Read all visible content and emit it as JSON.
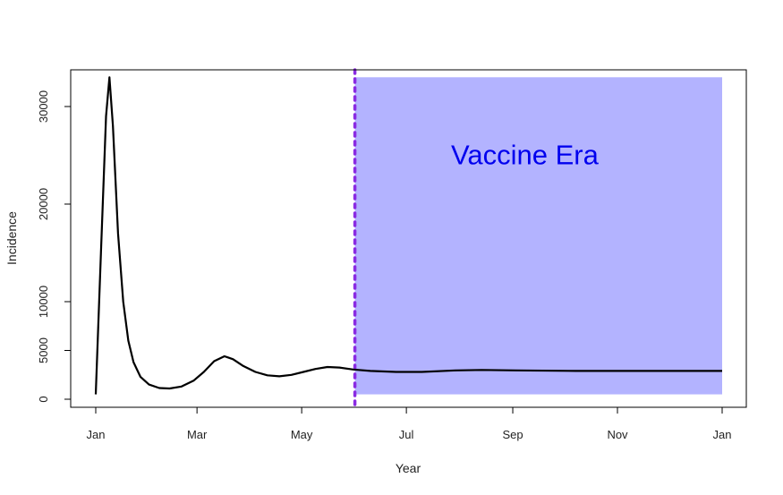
{
  "chart_data": {
    "type": "line",
    "xlabel": "Year",
    "ylabel": "Incidence",
    "x_ticks": [
      {
        "label": "Jan",
        "day": 0
      },
      {
        "label": "Mar",
        "day": 59
      },
      {
        "label": "May",
        "day": 120
      },
      {
        "label": "Jul",
        "day": 181
      },
      {
        "label": "Sep",
        "day": 243
      },
      {
        "label": "Nov",
        "day": 304
      },
      {
        "label": "Jan",
        "day": 365
      }
    ],
    "y_ticks": [
      0,
      5000,
      10000,
      20000,
      30000
    ],
    "xlim": [
      "Jan",
      "Jan"
    ],
    "ylim": [
      0,
      33000
    ],
    "series": [
      {
        "color": "#000000",
        "points": [
          {
            "x": 0,
            "y": 500
          },
          {
            "x": 3,
            "y": 15000
          },
          {
            "x": 6,
            "y": 29000
          },
          {
            "x": 8,
            "y": 33000
          },
          {
            "x": 10,
            "y": 28000
          },
          {
            "x": 13,
            "y": 17000
          },
          {
            "x": 16,
            "y": 10000
          },
          {
            "x": 19,
            "y": 6000
          },
          {
            "x": 22,
            "y": 3800
          },
          {
            "x": 26,
            "y": 2300
          },
          {
            "x": 31,
            "y": 1500
          },
          {
            "x": 37,
            "y": 1150
          },
          {
            "x": 43,
            "y": 1100
          },
          {
            "x": 50,
            "y": 1300
          },
          {
            "x": 57,
            "y": 1900
          },
          {
            "x": 63,
            "y": 2800
          },
          {
            "x": 69,
            "y": 3900
          },
          {
            "x": 75,
            "y": 4400
          },
          {
            "x": 80,
            "y": 4100
          },
          {
            "x": 86,
            "y": 3400
          },
          {
            "x": 93,
            "y": 2800
          },
          {
            "x": 100,
            "y": 2450
          },
          {
            "x": 107,
            "y": 2350
          },
          {
            "x": 114,
            "y": 2500
          },
          {
            "x": 121,
            "y": 2800
          },
          {
            "x": 128,
            "y": 3100
          },
          {
            "x": 135,
            "y": 3300
          },
          {
            "x": 142,
            "y": 3250
          },
          {
            "x": 150,
            "y": 3050
          },
          {
            "x": 160,
            "y": 2900
          },
          {
            "x": 175,
            "y": 2800
          },
          {
            "x": 190,
            "y": 2800
          },
          {
            "x": 210,
            "y": 2950
          },
          {
            "x": 225,
            "y": 3000
          },
          {
            "x": 245,
            "y": 2950
          },
          {
            "x": 280,
            "y": 2900
          },
          {
            "x": 320,
            "y": 2900
          },
          {
            "x": 365,
            "y": 2900
          }
        ]
      }
    ],
    "vline": {
      "x": 151,
      "color": "#8a2be2",
      "style": "dotted"
    },
    "shaded_region": {
      "x_start": 151,
      "x_end": 365,
      "y_start": 500,
      "y_end": 33000,
      "color": "#b3b3ff"
    },
    "annotation": {
      "text": "Vaccine Era",
      "x": 250,
      "y": 25000,
      "color": "#0000ee"
    }
  }
}
